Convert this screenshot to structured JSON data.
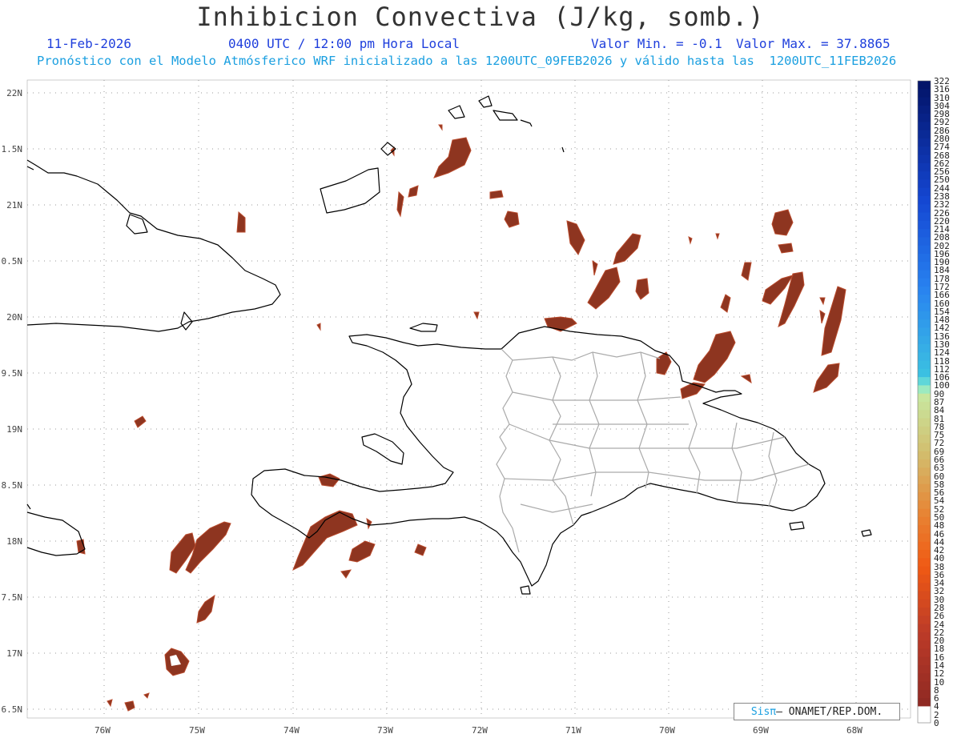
{
  "header": {
    "title": "Inhibicion Convectiva (J/kg, somb.)",
    "date": "11-Feb-2026",
    "time": "0400 UTC / 12:00 pm Hora Local",
    "valmin": "Valor Min. = -0.1",
    "valmax": "Valor Max. = 37.8865",
    "forecast": "Pronóstico con el Modelo Atmósferico WRF inicializado a las 1200UTC_09FEB2026 y válido hasta las  1200UTC_11FEB2026"
  },
  "axes": {
    "y_labels": [
      "22N",
      "1.5N",
      "21N",
      "0.5N",
      "20N",
      "9.5N",
      "19N",
      "8.5N",
      "18N",
      "7.5N",
      "17N",
      "6.5N"
    ],
    "x_labels": [
      "76W",
      "75W",
      "74W",
      "73W",
      "72W",
      "71W",
      "70W",
      "69W",
      "68W"
    ]
  },
  "colorbar": {
    "labels": [
      "322",
      "316",
      "310",
      "304",
      "298",
      "292",
      "286",
      "280",
      "274",
      "268",
      "262",
      "256",
      "250",
      "244",
      "238",
      "232",
      "226",
      "220",
      "214",
      "208",
      "202",
      "196",
      "190",
      "184",
      "178",
      "172",
      "166",
      "160",
      "154",
      "148",
      "142",
      "136",
      "130",
      "124",
      "118",
      "112",
      "106",
      "100",
      "90",
      "87",
      "84",
      "81",
      "78",
      "75",
      "72",
      "69",
      "66",
      "63",
      "60",
      "58",
      "56",
      "54",
      "52",
      "50",
      "48",
      "46",
      "44",
      "42",
      "40",
      "38",
      "36",
      "34",
      "32",
      "30",
      "28",
      "26",
      "24",
      "22",
      "20",
      "18",
      "16",
      "14",
      "12",
      "10",
      "8",
      "6",
      "4",
      "2",
      "0"
    ]
  },
  "credit": {
    "sis": "Sisπ",
    "org": "– ONAMET/REP.DOM."
  },
  "colors": {
    "shade": "#8e3520",
    "coast": "#000000",
    "provinces": "#a8a8a8"
  }
}
